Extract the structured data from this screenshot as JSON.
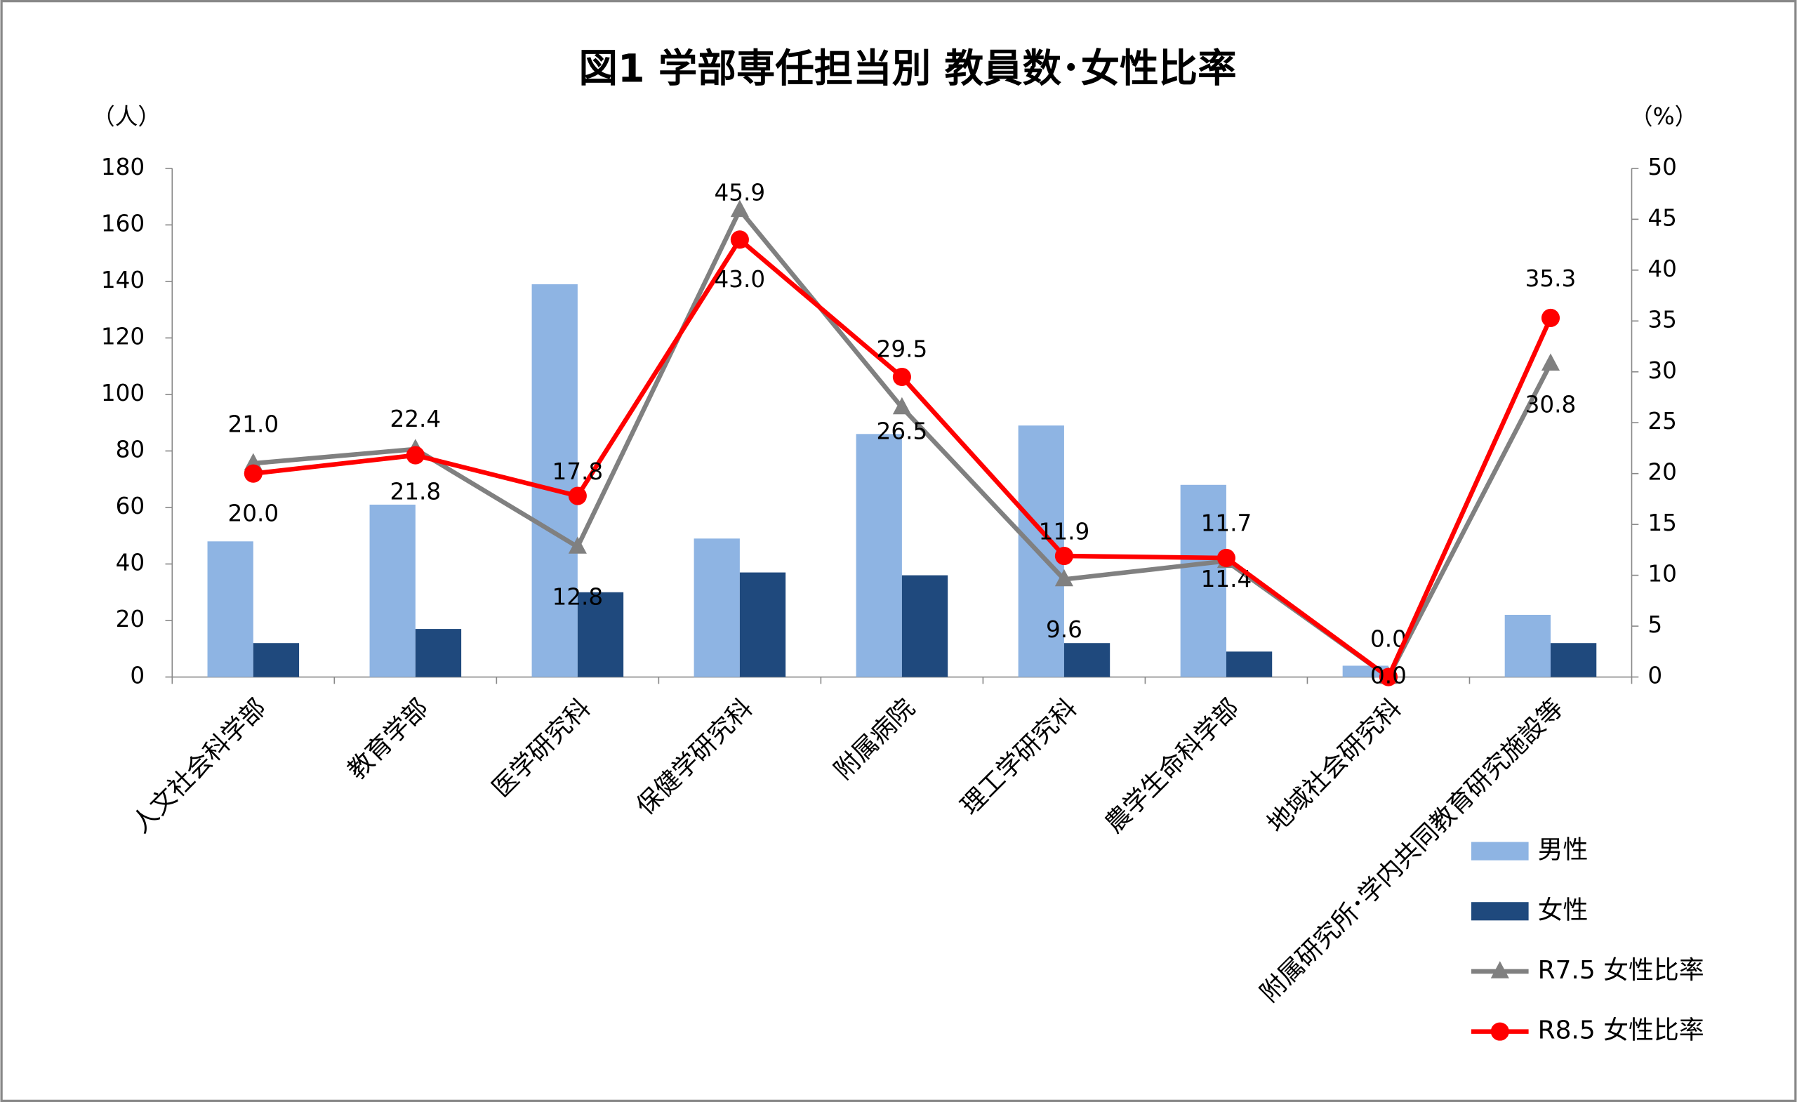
{
  "chart_data": {
    "type": "bar",
    "title": "図1 学部専任担当別 教員数･女性比率",
    "y_label": "（人）",
    "y2_label": "（%）",
    "categories": [
      "人文社会科学部",
      "教育学部",
      "医学研究科",
      "保健学研究科",
      "附属病院",
      "理工学研究科",
      "農学生命科学部",
      "地域社会研究科",
      "附属研究所･学内共同教育研究施設等"
    ],
    "series": [
      {
        "name": "男性",
        "type": "bar",
        "color": "#8eb4e3",
        "values": [
          48,
          61,
          139,
          49,
          86,
          89,
          68,
          4,
          22
        ]
      },
      {
        "name": "女性",
        "type": "bar",
        "color": "#1f497d",
        "values": [
          12,
          17,
          30,
          37,
          36,
          12,
          9,
          0,
          12
        ]
      },
      {
        "name": "R7.5 女性比率",
        "type": "line",
        "marker": "triangle",
        "axis": "y2",
        "color": "#808080",
        "values": [
          21.0,
          22.4,
          12.8,
          45.9,
          26.5,
          9.6,
          11.4,
          0.0,
          30.8
        ],
        "value_labels": [
          "21.0",
          "22.4",
          "12.8",
          "45.9",
          "26.5",
          "9.6",
          "11.4",
          "0.0",
          "30.8"
        ]
      },
      {
        "name": "R8.5 女性比率",
        "type": "line",
        "marker": "circle",
        "axis": "y2",
        "color": "#ff0000",
        "values": [
          20.0,
          21.8,
          17.8,
          43.0,
          29.5,
          11.9,
          11.7,
          0.0,
          35.3
        ],
        "value_labels": [
          "20.0",
          "21.8",
          "17.8",
          "43.0",
          "29.5",
          "11.9",
          "11.7",
          "0.0",
          "35.3"
        ]
      }
    ],
    "ylim": [
      0,
      180
    ],
    "yticks": [
      0,
      20,
      40,
      60,
      80,
      100,
      120,
      140,
      160,
      180
    ],
    "y2lim": [
      0,
      50
    ],
    "y2ticks": [
      0,
      5,
      10,
      15,
      20,
      25,
      30,
      35,
      40,
      45,
      50
    ]
  }
}
